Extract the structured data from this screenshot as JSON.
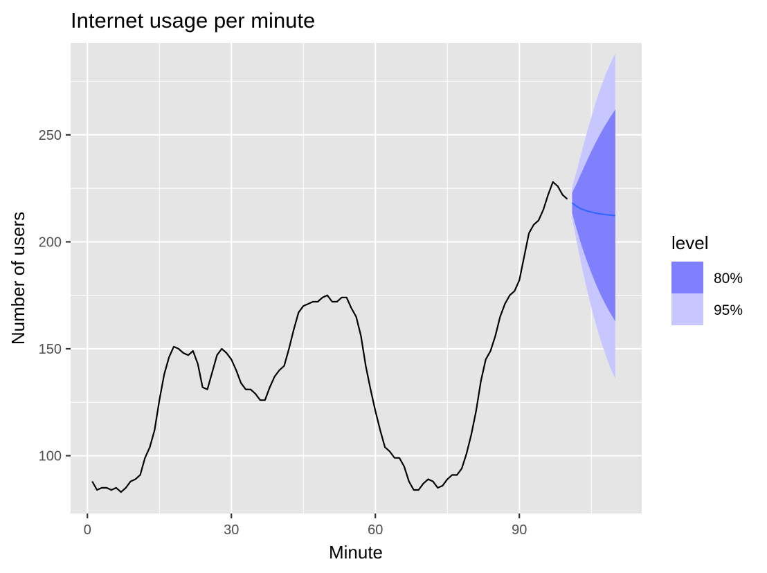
{
  "chart_data": {
    "type": "line",
    "title": "Internet usage per minute",
    "xlabel": "Minute",
    "ylabel": "Number of users",
    "xlim": [
      -3.5,
      115.5
    ],
    "ylim": [
      73,
      293
    ],
    "x_ticks": [
      0,
      30,
      60,
      90
    ],
    "x_minor_ticks": [
      15,
      45,
      75,
      105
    ],
    "y_ticks": [
      100,
      150,
      200,
      250
    ],
    "y_minor_ticks": [
      125,
      175,
      225,
      275
    ],
    "grid": true,
    "series": [
      {
        "x_start": 1,
        "values": [
          88,
          84,
          85,
          85,
          84,
          85,
          83,
          85,
          88,
          89,
          91,
          99,
          104,
          112,
          126,
          138,
          146,
          151,
          150,
          148,
          147,
          149,
          143,
          132,
          131,
          139,
          147,
          150,
          148,
          145,
          140,
          134,
          131,
          131,
          129,
          126,
          126,
          132,
          137,
          140,
          142,
          150,
          159,
          167,
          170,
          171,
          172,
          172,
          174,
          175,
          172,
          172,
          174,
          174,
          169,
          165,
          156,
          142,
          131,
          121,
          112,
          104,
          102,
          99,
          99,
          95,
          88,
          84,
          84,
          87,
          89,
          88,
          85,
          86,
          89,
          91,
          91,
          94,
          101,
          110,
          121,
          135,
          145,
          149,
          156,
          165,
          171,
          175,
          177,
          182,
          193,
          204,
          208,
          210,
          215,
          222,
          228,
          226,
          222,
          220
        ]
      }
    ],
    "forecast": {
      "x": [
        101,
        102,
        103,
        104,
        105,
        106,
        107,
        108,
        109,
        110
      ],
      "mean": [
        218.2,
        216.5,
        215.3,
        214.5,
        213.9,
        213.4,
        213.0,
        212.7,
        212.5,
        212.3
      ],
      "lo80": [
        213.5,
        205.5,
        198.0,
        191.5,
        185.5,
        180.0,
        175.0,
        170.5,
        166.5,
        162.8
      ],
      "hi80": [
        222.9,
        227.5,
        232.6,
        237.5,
        242.3,
        246.8,
        251.0,
        254.9,
        258.5,
        262.0
      ],
      "lo95": [
        211.0,
        199.5,
        188.5,
        178.5,
        169.5,
        161.0,
        153.5,
        147.0,
        141.0,
        136.0
      ],
      "hi95": [
        225.4,
        233.5,
        242.1,
        250.5,
        258.3,
        265.8,
        272.5,
        278.4,
        283.5,
        288.0
      ]
    },
    "legend": {
      "title": "level",
      "position": "right",
      "items": [
        {
          "label": "80%",
          "color": "#8080ff"
        },
        {
          "label": "95%",
          "color": "#c8c6ff"
        }
      ]
    },
    "colors": {
      "panel": "#e5e5e5",
      "grid": "#ffffff",
      "series": "#000000",
      "forecast_line": "#3366ff",
      "band80": "#8080ff",
      "band95": "#c8c6ff",
      "tick": "#333333"
    }
  }
}
